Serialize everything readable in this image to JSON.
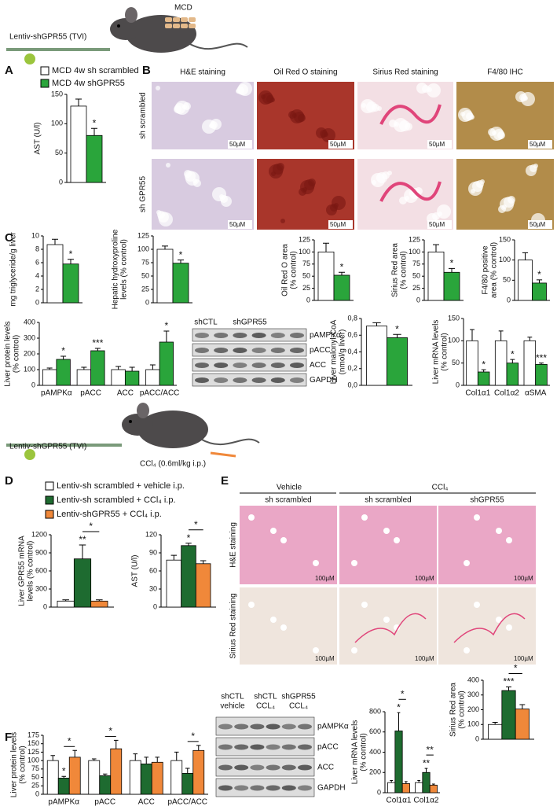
{
  "header": {
    "mcd": "MCD",
    "injection": "Lentiv-shGPR55 (TVI)",
    "ccl4": "CCl₄ (0.6ml/kg i.p.)"
  },
  "panel_letters": [
    "A",
    "B",
    "C",
    "D",
    "E",
    "F"
  ],
  "panel_b": {
    "columns": [
      "H&E staining",
      "Oil Red O staining",
      "Sirius Red staining",
      "F4/80 IHC"
    ],
    "rows": [
      "sh scrambled",
      "sh GPR55"
    ],
    "scale_bar": "50µM"
  },
  "blot_c": {
    "groups": [
      "shCTL",
      "shGPR55"
    ],
    "rows": [
      "pAMPKα",
      "pACC",
      "ACC",
      "GAPDH"
    ]
  },
  "panel_e": {
    "groups": [
      "Vehicle",
      "CCl₄"
    ],
    "columns": [
      "sh scrambled",
      "sh scrambled",
      "shGPR55"
    ],
    "rows": [
      "H&E staining",
      "Sirius Red staining"
    ],
    "scale_bar": "100µM"
  },
  "blot_f": {
    "groups": [
      [
        "shCTL",
        "vehicle"
      ],
      [
        "shCTL",
        "CCL₄"
      ],
      [
        "shGPR55",
        "CCL₄"
      ]
    ],
    "rows": [
      "pAMPKα",
      "pACC",
      "ACC",
      "GAPDH"
    ]
  },
  "chart_data": [
    {
      "type": "bar",
      "ylabel": [
        "AST (U/l)"
      ],
      "categories": [
        null
      ],
      "ylim": [
        0,
        150
      ],
      "yticks": [
        0,
        50,
        100,
        150
      ],
      "series": [
        {
          "name": "MCD 4w sh scrambled",
          "color": "#ffffff",
          "values": [
            130
          ],
          "errors": [
            12
          ]
        },
        {
          "name": "MCD 4w shGPR55",
          "color": "#2aa53b",
          "values": [
            80
          ],
          "errors": [
            12
          ],
          "annotations": [
            "*"
          ]
        }
      ]
    },
    {
      "type": "bar",
      "ylabel": [
        "mg triglyceride/g liver"
      ],
      "categories": [
        null
      ],
      "ylim": [
        0,
        10
      ],
      "yticks": [
        0,
        2,
        4,
        6,
        8,
        10
      ],
      "series": [
        {
          "color": "#ffffff",
          "values": [
            8.7
          ],
          "errors": [
            0.8
          ]
        },
        {
          "color": "#2aa53b",
          "values": [
            5.8
          ],
          "errors": [
            0.7
          ],
          "annotations": [
            "*"
          ]
        }
      ]
    },
    {
      "type": "bar",
      "ylabel": [
        "Hepatic hydroxyproline",
        "levels (% control)"
      ],
      "categories": [
        null
      ],
      "ylim": [
        0,
        125
      ],
      "yticks": [
        0,
        25,
        50,
        75,
        100,
        125
      ],
      "series": [
        {
          "color": "#ffffff",
          "values": [
            100
          ],
          "errors": [
            6
          ]
        },
        {
          "color": "#2aa53b",
          "values": [
            74
          ],
          "errors": [
            6
          ],
          "annotations": [
            "*"
          ]
        }
      ]
    },
    {
      "type": "bar",
      "ylabel": [
        "Oil Red O area",
        "(% control)"
      ],
      "categories": [
        null
      ],
      "ylim": [
        0,
        125
      ],
      "yticks": [
        0,
        25,
        50,
        75,
        100,
        125
      ],
      "series": [
        {
          "color": "#ffffff",
          "values": [
            100
          ],
          "errors": [
            18
          ]
        },
        {
          "color": "#2aa53b",
          "values": [
            52
          ],
          "errors": [
            6
          ],
          "annotations": [
            "*"
          ]
        }
      ]
    },
    {
      "type": "bar",
      "ylabel": [
        "Sirius Red area",
        "(% control)"
      ],
      "categories": [
        null
      ],
      "ylim": [
        0,
        125
      ],
      "yticks": [
        0,
        25,
        50,
        75,
        100,
        125
      ],
      "series": [
        {
          "color": "#ffffff",
          "values": [
            100
          ],
          "errors": [
            15
          ]
        },
        {
          "color": "#2aa53b",
          "values": [
            58
          ],
          "errors": [
            8
          ],
          "annotations": [
            "*"
          ]
        }
      ]
    },
    {
      "type": "bar",
      "ylabel": [
        "F4/80 positive",
        "area (% control)"
      ],
      "categories": [
        null
      ],
      "ylim": [
        0,
        150
      ],
      "yticks": [
        0,
        50,
        100,
        150
      ],
      "series": [
        {
          "color": "#ffffff",
          "values": [
            100
          ],
          "errors": [
            18
          ]
        },
        {
          "color": "#2aa53b",
          "values": [
            43
          ],
          "errors": [
            8
          ],
          "annotations": [
            "*"
          ]
        }
      ]
    },
    {
      "type": "bar",
      "ylabel": [
        "Liver protein levels",
        "(% control)"
      ],
      "categories": [
        "pAMPKα",
        "pACC",
        "ACC",
        "pACC/ACC"
      ],
      "ylim": [
        0,
        400
      ],
      "yticks": [
        0,
        100,
        200,
        300,
        400
      ],
      "series": [
        {
          "color": "#ffffff",
          "values": [
            100,
            100,
            100,
            100
          ],
          "errors": [
            10,
            15,
            20,
            30
          ]
        },
        {
          "color": "#2aa53b",
          "values": [
            165,
            220,
            90,
            275
          ],
          "errors": [
            20,
            15,
            25,
            70
          ],
          "annotations": [
            "*",
            "***",
            null,
            "*"
          ]
        }
      ]
    },
    {
      "type": "bar",
      "ylabel": [
        "Liver malonyl-CoA",
        "(nmol/g liver)"
      ],
      "categories": [
        null
      ],
      "ylim": [
        0,
        0.8
      ],
      "yticks": [
        {
          "value": 0,
          "label": "0,0"
        },
        {
          "value": 0.2,
          "label": "0,2"
        },
        {
          "value": 0.4,
          "label": "0,4"
        },
        {
          "value": 0.6,
          "label": "0,6"
        },
        {
          "value": 0.8,
          "label": "0,8"
        }
      ],
      "series": [
        {
          "color": "#ffffff",
          "values": [
            0.71
          ],
          "errors": [
            0.04
          ]
        },
        {
          "color": "#2aa53b",
          "values": [
            0.57
          ],
          "errors": [
            0.04
          ],
          "annotations": [
            "*"
          ]
        }
      ]
    },
    {
      "type": "bar",
      "ylabel": [
        "Liver mRNA levels",
        "(% control)"
      ],
      "categories": [
        "Col1α1",
        "Col1α2",
        "αSMA"
      ],
      "ylim": [
        0,
        150
      ],
      "yticks": [
        0,
        50,
        100,
        150
      ],
      "series": [
        {
          "color": "#ffffff",
          "values": [
            100,
            100,
            100
          ],
          "errors": [
            25,
            22,
            8
          ]
        },
        {
          "color": "#2aa53b",
          "values": [
            30,
            50,
            47
          ],
          "errors": [
            5,
            8,
            3
          ],
          "annotations": [
            "*",
            "*",
            "***"
          ]
        }
      ]
    },
    {
      "type": "bar",
      "ylabel": [
        "Liver GPR55 mRNA",
        "levels (% control)"
      ],
      "categories": [
        null
      ],
      "ylim": [
        0,
        1200
      ],
      "yticks": [
        0,
        300,
        600,
        900,
        1200
      ],
      "bracket_labels": [
        "*"
      ],
      "series": [
        {
          "name": "Lentiv-sh scrambled + vehicle i.p.",
          "color": "#ffffff",
          "values": [
            100
          ],
          "errors": [
            20
          ]
        },
        {
          "name": "Lentiv-sh scrambled + CCl₄ i.p.",
          "color": "#1e6b30",
          "values": [
            800
          ],
          "errors": [
            230
          ],
          "annotations": [
            "**"
          ]
        },
        {
          "name": "Lentiv-shGPR55 + CCl₄ i.p.",
          "color": "#f0883a",
          "values": [
            100
          ],
          "errors": [
            20
          ]
        }
      ]
    },
    {
      "type": "bar",
      "ylabel": [
        "AST (U/l)"
      ],
      "categories": [
        null
      ],
      "ylim": [
        0,
        120
      ],
      "yticks": [
        0,
        30,
        60,
        90,
        120
      ],
      "bracket_labels": [
        "*"
      ],
      "series": [
        {
          "color": "#ffffff",
          "values": [
            78
          ],
          "errors": [
            8
          ]
        },
        {
          "color": "#1e6b30",
          "values": [
            102
          ],
          "errors": [
            4
          ],
          "annotations": [
            "*"
          ]
        },
        {
          "color": "#f0883a",
          "values": [
            72
          ],
          "errors": [
            5
          ]
        }
      ]
    },
    {
      "type": "bar",
      "ylabel": [
        "Sirius Red area",
        "(% control)"
      ],
      "categories": [
        null
      ],
      "ylim": [
        0,
        400
      ],
      "yticks": [
        0,
        100,
        200,
        300,
        400
      ],
      "bracket_labels": [
        "*"
      ],
      "series": [
        {
          "color": "#ffffff",
          "values": [
            100
          ],
          "errors": [
            15
          ]
        },
        {
          "color": "#1e6b30",
          "values": [
            330
          ],
          "errors": [
            25
          ],
          "annotations": [
            "***"
          ]
        },
        {
          "color": "#f0883a",
          "values": [
            205
          ],
          "errors": [
            30
          ]
        }
      ]
    },
    {
      "type": "bar",
      "ylabel": [
        "Liver protein levels",
        "(% control)"
      ],
      "categories": [
        "pAMPKα",
        "pACC",
        "ACC",
        "pACC/ACC"
      ],
      "ylim": [
        0,
        175
      ],
      "yticks": [
        0,
        25,
        50,
        75,
        100,
        125,
        150,
        175
      ],
      "bracket_labels": [
        "*",
        "*",
        null,
        "*"
      ],
      "series": [
        {
          "color": "#ffffff",
          "values": [
            100,
            100,
            100,
            100
          ],
          "errors": [
            15,
            5,
            20,
            25
          ]
        },
        {
          "color": "#1e6b30",
          "values": [
            48,
            55,
            90,
            62
          ],
          "errors": [
            5,
            5,
            20,
            15
          ],
          "annotations": [
            "*",
            null,
            null,
            null
          ]
        },
        {
          "color": "#f0883a",
          "values": [
            110,
            135,
            95,
            130
          ],
          "errors": [
            20,
            25,
            15,
            15
          ]
        }
      ]
    },
    {
      "type": "bar",
      "ylabel": [
        "Liver mRNA levels",
        "(% control)"
      ],
      "categories": [
        "Col1α1",
        "Col1α2"
      ],
      "ylim": [
        0,
        800
      ],
      "yticks": [
        0,
        200,
        400,
        600,
        800
      ],
      "bracket_labels": [
        "*",
        "**"
      ],
      "series": [
        {
          "color": "#ffffff",
          "values": [
            100,
            100
          ],
          "errors": [
            20,
            20
          ]
        },
        {
          "color": "#1e6b30",
          "values": [
            610,
            200
          ],
          "errors": [
            180,
            40
          ],
          "annotations": [
            "*",
            "**"
          ]
        },
        {
          "color": "#f0883a",
          "values": [
            90,
            75
          ],
          "errors": [
            20,
            10
          ]
        }
      ]
    }
  ]
}
